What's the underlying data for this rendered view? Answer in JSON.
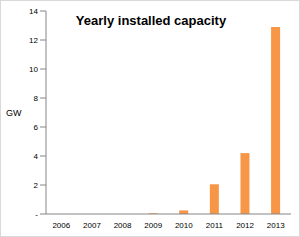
{
  "chart_data": {
    "type": "bar",
    "title": "Yearly installed capacity",
    "y_label": "GW",
    "categories": [
      "2006",
      "2007",
      "2008",
      "2009",
      "2010",
      "2011",
      "2012",
      "2013"
    ],
    "values": [
      0,
      0,
      0,
      0.05,
      0.25,
      2.05,
      4.2,
      12.9
    ],
    "color": "#f79646",
    "ylim": [
      0,
      14
    ],
    "yticks": [
      {
        "value": 0,
        "label": "-"
      },
      2,
      4,
      6,
      8,
      10,
      12,
      14
    ],
    "grid": false
  }
}
